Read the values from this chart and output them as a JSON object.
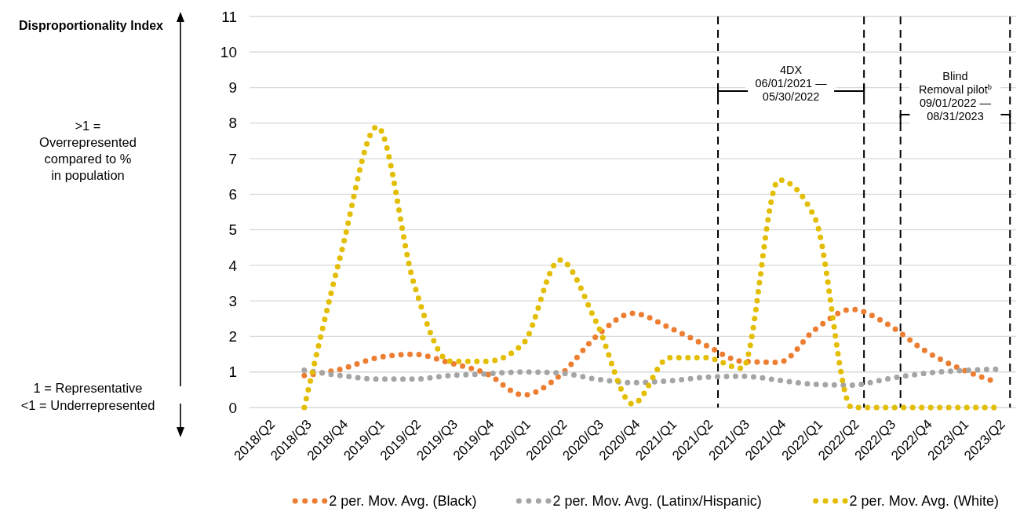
{
  "chart_data": {
    "type": "line",
    "ylabel": "Disproportionality Index",
    "categories": [
      "2018/Q2",
      "2018/Q3",
      "2018/Q4",
      "2019/Q1",
      "2019/Q2",
      "2019/Q3",
      "2019/Q4",
      "2020/Q1",
      "2020/Q2",
      "2020/Q3",
      "2020/Q4",
      "2021/Q1",
      "2021/Q2",
      "2021/Q3",
      "2021/Q4",
      "2022/Q1",
      "2022/Q2",
      "2022/Q3",
      "2022/Q4",
      "2023/Q1",
      "2023/Q2"
    ],
    "series": [
      {
        "name": "2 per. Mov. Avg. (Black)",
        "color": "#ed7d31",
        "values": [
          null,
          0.9,
          1.08,
          1.4,
          1.5,
          1.25,
          0.95,
          0.35,
          0.9,
          2.0,
          2.65,
          2.25,
          1.75,
          1.3,
          1.27,
          2.2,
          2.76,
          2.33,
          1.6,
          1.08,
          0.7
        ]
      },
      {
        "name": "2 per. Mov. Avg. (Latinx/Hispanic)",
        "color": "#a5a5a5",
        "values": [
          null,
          1.05,
          0.9,
          0.8,
          0.8,
          0.9,
          0.95,
          1.0,
          0.97,
          0.8,
          0.7,
          0.75,
          0.85,
          0.88,
          0.77,
          0.65,
          0.63,
          0.81,
          0.96,
          1.04,
          1.08
        ]
      },
      {
        "name": "2 per. Mov. Avg. (White)",
        "color": "#e3bd00",
        "values": [
          null,
          0,
          4.3,
          7.9,
          3.5,
          1.3,
          1.3,
          1.8,
          4.15,
          2.4,
          0.1,
          1.4,
          1.4,
          1.1,
          6.4,
          5.3,
          0,
          0,
          0,
          0,
          0
        ]
      }
    ],
    "ylim": [
      0,
      11
    ],
    "yticks": [
      0,
      1,
      2,
      3,
      4,
      5,
      6,
      7,
      8,
      9,
      10,
      11
    ],
    "grid": "y",
    "legend": "bottom",
    "line_style": "dotted",
    "marker": "none",
    "ref_lines": [
      {
        "axis": "x",
        "value": "2021/Q2",
        "label": "4DX\n06/01/2021 —\n05/30/2022",
        "line_style": "dashed"
      },
      {
        "axis": "x",
        "value": "2022/Q2",
        "line_style": "dashed"
      },
      {
        "axis": "x",
        "value": "2022/Q3",
        "label": "Blind\nRemoval pilot$^{b}$\n09/01/2022 —\n08/31/2023",
        "line_style": "dashed"
      },
      {
        "axis": "x",
        "value": "2023/Q2",
        "line_style": "dashed"
      }
    ],
    "annotations": [
      ">1 =\nOverrepresented\ncompared to %\nin population",
      "1 = Representative",
      "<1 = Underrepresented"
    ]
  }
}
